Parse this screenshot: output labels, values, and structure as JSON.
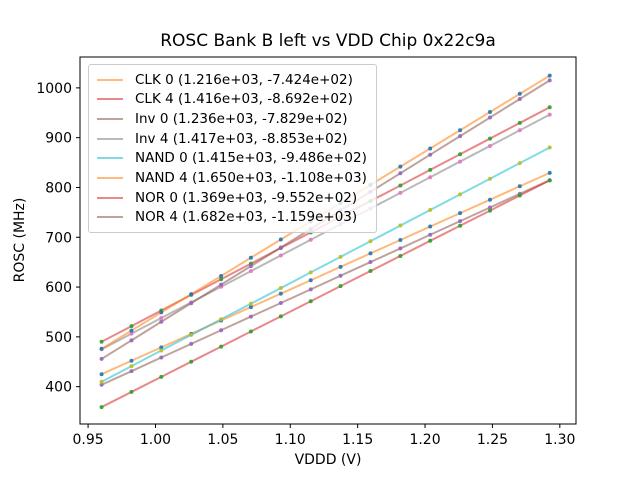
{
  "chart_data": {
    "type": "scatter",
    "title": "ROSC Bank B left vs VDD Chip 0x22c9a",
    "xlabel": "VDDD (V)",
    "ylabel": "ROSC (MHz)",
    "x_ticks": [
      "0.95",
      "1.00",
      "1.05",
      "1.10",
      "1.15",
      "1.20",
      "1.25",
      "1.30"
    ],
    "y_ticks": [
      "400",
      "500",
      "600",
      "700",
      "800",
      "900",
      "1000"
    ],
    "xlim": [
      0.944,
      1.312
    ],
    "ylim": [
      325,
      1062
    ],
    "grid": false,
    "legend_position": "upper-left",
    "x": [
      0.96,
      0.9822,
      1.0043,
      1.0265,
      1.0487,
      1.0708,
      1.093,
      1.1152,
      1.1373,
      1.1595,
      1.1817,
      1.2038,
      1.226,
      1.2482,
      1.2703,
      1.2925
    ],
    "series": [
      {
        "name": "CLK 0",
        "label": "CLK 0 (1.216e+03, -7.424e+02)",
        "slope": 1216.0,
        "intercept": -742.4,
        "line_color": "#ff7f0e",
        "marker_color": "#1f77b4",
        "values": [
          425.0,
          452.0,
          478.9,
          505.9,
          532.8,
          559.8,
          586.7,
          613.7,
          640.6,
          667.6,
          694.5,
          721.5,
          748.5,
          775.4,
          802.4,
          829.3
        ]
      },
      {
        "name": "CLK 4",
        "label": "CLK 4 (1.416e+03, -8.692e+02)",
        "slope": 1416.0,
        "intercept": -869.2,
        "line_color": "#d62728",
        "marker_color": "#2ca02c",
        "values": [
          490.2,
          521.5,
          552.9,
          584.3,
          615.7,
          647.1,
          678.5,
          709.9,
          741.3,
          772.7,
          804.0,
          835.4,
          866.8,
          898.2,
          929.6,
          961.0
        ]
      },
      {
        "name": "Inv 0",
        "label": "Inv 0 (1.236e+03, -7.829e+02)",
        "slope": 1236.0,
        "intercept": -782.9,
        "line_color": "#8c564b",
        "marker_color": "#9467bd",
        "values": [
          403.7,
          431.1,
          458.5,
          485.9,
          513.3,
          540.7,
          568.0,
          595.4,
          622.8,
          650.2,
          677.6,
          705.0,
          732.4,
          759.8,
          787.2,
          814.6
        ]
      },
      {
        "name": "Inv 4",
        "label": "Inv 4 (1.417e+03, -8.853e+02)",
        "slope": 1417.0,
        "intercept": -885.3,
        "line_color": "#7f7f7f",
        "marker_color": "#e377c2",
        "values": [
          475.0,
          506.4,
          537.8,
          569.3,
          600.7,
          632.1,
          663.5,
          694.9,
          726.3,
          757.7,
          789.1,
          820.5,
          852.0,
          883.4,
          914.8,
          946.2
        ]
      },
      {
        "name": "NAND 0",
        "label": "NAND 0 (1.415e+03, -9.486e+02)",
        "slope": 1415.0,
        "intercept": -948.6,
        "line_color": "#17becf",
        "marker_color": "#bcbd22",
        "values": [
          409.8,
          441.2,
          472.5,
          503.9,
          535.3,
          566.6,
          598.0,
          629.4,
          660.7,
          692.1,
          723.5,
          754.8,
          786.2,
          817.6,
          848.9,
          880.3
        ]
      },
      {
        "name": "NAND 4",
        "label": "NAND 4 (1.650e+03, -1.108e+03)",
        "slope": 1650.0,
        "intercept": -1108.0,
        "line_color": "#ff7f0e",
        "marker_color": "#1f77b4",
        "values": [
          476.0,
          512.6,
          549.2,
          585.7,
          622.3,
          658.9,
          695.5,
          732.0,
          768.6,
          805.2,
          841.8,
          878.3,
          914.9,
          951.5,
          988.1,
          1024.6
        ]
      },
      {
        "name": "NOR 0",
        "label": "NOR 0 (1.369e+03, -9.552e+02)",
        "slope": 1369.0,
        "intercept": -955.2,
        "line_color": "#d62728",
        "marker_color": "#2ca02c",
        "values": [
          359.0,
          389.4,
          419.7,
          450.1,
          480.4,
          510.8,
          541.1,
          571.5,
          601.8,
          632.2,
          662.5,
          692.9,
          723.2,
          753.5,
          783.9,
          814.2
        ]
      },
      {
        "name": "NOR 4",
        "label": "NOR 4 (1.682e+03, -1.159e+03)",
        "slope": 1682.0,
        "intercept": -1159.0,
        "line_color": "#8c564b",
        "marker_color": "#9467bd",
        "values": [
          455.7,
          493.0,
          530.3,
          567.6,
          604.9,
          642.1,
          679.4,
          716.7,
          754.0,
          791.3,
          828.6,
          865.8,
          903.1,
          940.4,
          977.7,
          1015.0
        ]
      }
    ]
  }
}
